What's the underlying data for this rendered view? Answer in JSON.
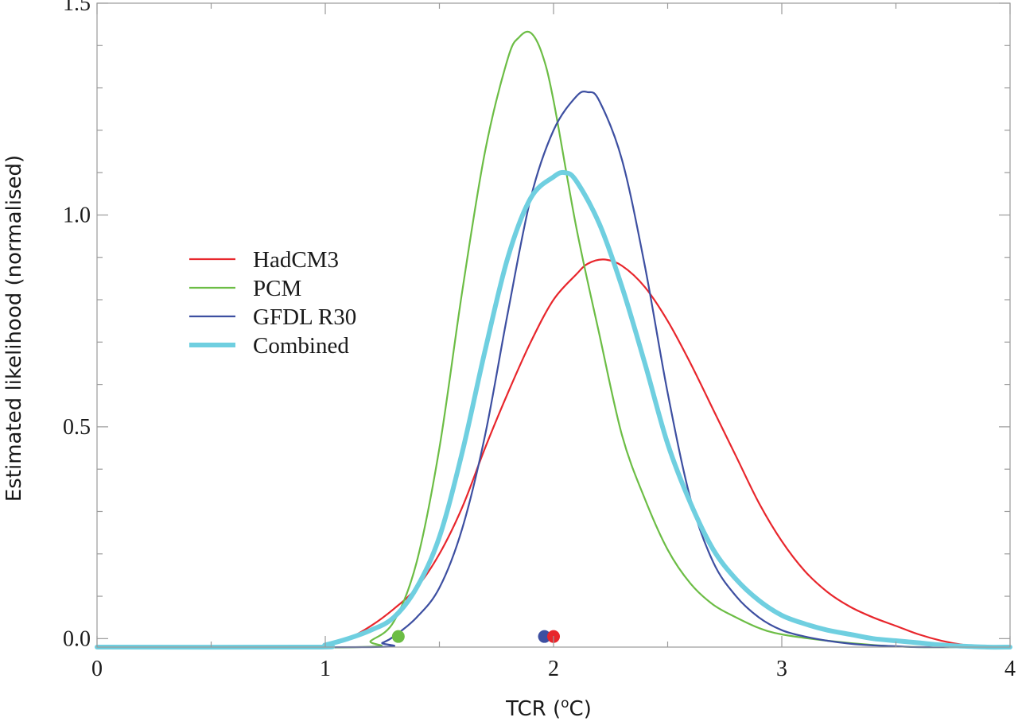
{
  "chart_data": {
    "type": "line",
    "xlabel": "TCR (",
    "xlabel_sup": "o",
    "xlabel_unit": "C)",
    "ylabel": "Estimated likelihood (normalised)",
    "xlim": [
      0,
      4
    ],
    "ylim": [
      -0.02,
      1.5
    ],
    "x_ticks": [
      0,
      1,
      2,
      3,
      4
    ],
    "x_tick_labels": [
      "0",
      "1",
      "2",
      "3",
      "4"
    ],
    "y_ticks": [
      0.0,
      0.5,
      1.0,
      1.5
    ],
    "y_tick_labels": [
      "0.0",
      "0.5",
      "1.0",
      "1.5"
    ],
    "legend_position": "center-left",
    "series": [
      {
        "name": "HadCM3",
        "color": "#e8262c",
        "x": [
          0,
          0.95,
          1.0,
          1.1,
          1.2,
          1.3,
          1.4,
          1.5,
          1.6,
          1.7,
          1.8,
          1.9,
          2.0,
          2.1,
          2.15,
          2.22,
          2.3,
          2.4,
          2.5,
          2.6,
          2.7,
          2.8,
          2.9,
          3.0,
          3.1,
          3.2,
          3.3,
          3.4,
          3.5,
          3.6,
          3.7,
          3.8,
          3.9,
          4.0
        ],
        "y": [
          -0.02,
          -0.02,
          -0.015,
          0.0,
          0.03,
          0.07,
          0.12,
          0.2,
          0.31,
          0.45,
          0.58,
          0.7,
          0.8,
          0.86,
          0.885,
          0.895,
          0.88,
          0.83,
          0.75,
          0.65,
          0.54,
          0.43,
          0.32,
          0.23,
          0.16,
          0.11,
          0.075,
          0.05,
          0.03,
          0.01,
          -0.005,
          -0.015,
          -0.02,
          -0.02
        ]
      },
      {
        "name": "PCM",
        "color": "#6cbd45",
        "x": [
          0,
          1.15,
          1.2,
          1.3,
          1.4,
          1.5,
          1.6,
          1.7,
          1.8,
          1.85,
          1.9,
          1.95,
          2.0,
          2.1,
          2.2,
          2.3,
          2.4,
          2.5,
          2.6,
          2.7,
          2.8,
          2.9,
          3.0,
          3.2,
          3.4,
          3.6,
          4.0
        ],
        "y": [
          -0.02,
          -0.02,
          -0.005,
          0.04,
          0.18,
          0.45,
          0.82,
          1.15,
          1.37,
          1.42,
          1.43,
          1.38,
          1.27,
          0.97,
          0.72,
          0.48,
          0.33,
          0.21,
          0.13,
          0.08,
          0.05,
          0.025,
          0.01,
          -0.005,
          -0.015,
          -0.02,
          -0.02
        ]
      },
      {
        "name": "GFDL R30",
        "color": "#3d4fa1",
        "x": [
          0,
          1.2,
          1.25,
          1.3,
          1.4,
          1.5,
          1.6,
          1.7,
          1.8,
          1.9,
          2.0,
          2.1,
          2.15,
          2.2,
          2.3,
          2.4,
          2.5,
          2.6,
          2.7,
          2.8,
          2.9,
          3.0,
          3.1,
          3.2,
          3.3,
          3.4,
          3.5,
          3.6,
          4.0
        ],
        "y": [
          -0.02,
          -0.02,
          -0.01,
          0.005,
          0.05,
          0.12,
          0.26,
          0.48,
          0.77,
          1.04,
          1.2,
          1.28,
          1.29,
          1.27,
          1.13,
          0.88,
          0.58,
          0.33,
          0.18,
          0.1,
          0.05,
          0.02,
          0.005,
          -0.005,
          -0.012,
          -0.016,
          -0.018,
          -0.02,
          -0.02
        ]
      },
      {
        "name": "Combined",
        "color": "#6fcfe0",
        "x": [
          0,
          0.95,
          1.0,
          1.1,
          1.2,
          1.3,
          1.4,
          1.5,
          1.6,
          1.7,
          1.8,
          1.9,
          2.0,
          2.05,
          2.1,
          2.2,
          2.3,
          2.4,
          2.5,
          2.6,
          2.7,
          2.8,
          2.9,
          3.0,
          3.1,
          3.2,
          3.3,
          3.4,
          3.5,
          3.6,
          3.7,
          3.8,
          3.9,
          4.0
        ],
        "y": [
          -0.02,
          -0.02,
          -0.015,
          0.0,
          0.02,
          0.05,
          0.12,
          0.24,
          0.44,
          0.68,
          0.9,
          1.04,
          1.09,
          1.1,
          1.08,
          0.98,
          0.83,
          0.65,
          0.46,
          0.32,
          0.21,
          0.14,
          0.09,
          0.055,
          0.035,
          0.02,
          0.01,
          0.0,
          -0.005,
          -0.01,
          -0.015,
          -0.018,
          -0.02,
          -0.02
        ]
      }
    ],
    "markers": [
      {
        "series": "PCM",
        "x": 1.32,
        "y": 0.005,
        "color": "#6cbd45"
      },
      {
        "series": "GFDL R30",
        "x": 1.96,
        "y": 0.005,
        "color": "#3d4fa1"
      },
      {
        "series": "HadCM3",
        "x": 2.0,
        "y": 0.005,
        "color": "#e8262c"
      }
    ]
  }
}
